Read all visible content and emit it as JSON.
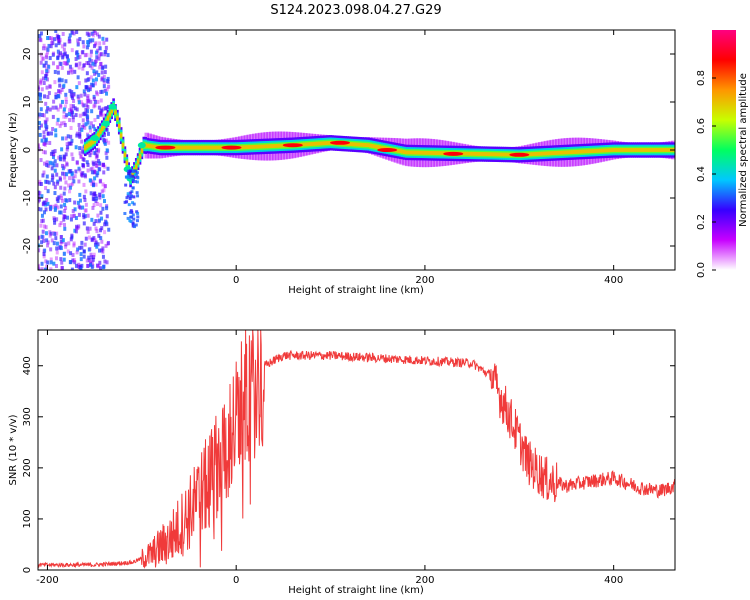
{
  "title": "S124.2023.098.04.27.G29",
  "colors": {
    "snr_line": "#f03a3a",
    "frame": "#000000"
  },
  "chart_data": [
    {
      "type": "heatmap",
      "xlabel": "Height of straight line (km)",
      "ylabel": "Frequency (Hz)",
      "xlim": [
        -210,
        465
      ],
      "ylim": [
        -25,
        25
      ],
      "xticks": [
        -200,
        0,
        200,
        400
      ],
      "yticks": [
        -20,
        -10,
        0,
        10,
        20
      ],
      "colorbar": {
        "label": "Normalized spectral amplitude",
        "range": [
          0,
          1
        ],
        "ticks": [
          "0.0",
          "0.2",
          "0.4",
          "0.6",
          "0.8"
        ],
        "colormap": [
          "#ffffff",
          "#c700ff",
          "#3600ff",
          "#00c8ff",
          "#00ff60",
          "#c8ff00",
          "#ff9600",
          "#ff0000",
          "#ff0080"
        ]
      },
      "ridge": [
        {
          "x": -160,
          "y": 0.5
        },
        {
          "x": -150,
          "y": 2
        },
        {
          "x": -140,
          "y": 5
        },
        {
          "x": -130,
          "y": 9
        },
        {
          "x": -125,
          "y": 6
        },
        {
          "x": -118,
          "y": -1
        },
        {
          "x": -112,
          "y": -6
        },
        {
          "x": -105,
          "y": -3
        },
        {
          "x": -98,
          "y": 1
        },
        {
          "x": -80,
          "y": 0.5
        },
        {
          "x": 0,
          "y": 0.5
        },
        {
          "x": 60,
          "y": 1
        },
        {
          "x": 100,
          "y": 1.5
        },
        {
          "x": 140,
          "y": 1
        },
        {
          "x": 180,
          "y": -0.5
        },
        {
          "x": 300,
          "y": -1
        },
        {
          "x": 400,
          "y": 0
        },
        {
          "x": 465,
          "y": 0
        }
      ]
    },
    {
      "type": "line",
      "xlabel": "Height of straight line (km)",
      "ylabel": "SNR (10 * v/v)",
      "xlim": [
        -210,
        465
      ],
      "ylim": [
        0,
        470
      ],
      "xticks": [
        -200,
        0,
        200,
        400
      ],
      "yticks": [
        0,
        100,
        200,
        300,
        400
      ],
      "grid": false,
      "series": [
        {
          "x": [
            -210,
            -150,
            -110,
            -90,
            -70,
            -50,
            -30,
            -15,
            0,
            10,
            20,
            30,
            50,
            100,
            150,
            200,
            250,
            270,
            290,
            310,
            330,
            350,
            380,
            400,
            430,
            450,
            465
          ],
          "values": [
            10,
            10,
            15,
            30,
            60,
            110,
            170,
            230,
            290,
            340,
            370,
            400,
            420,
            420,
            415,
            410,
            405,
            380,
            300,
            210,
            175,
            165,
            175,
            180,
            160,
            155,
            165
          ]
        }
      ]
    }
  ]
}
